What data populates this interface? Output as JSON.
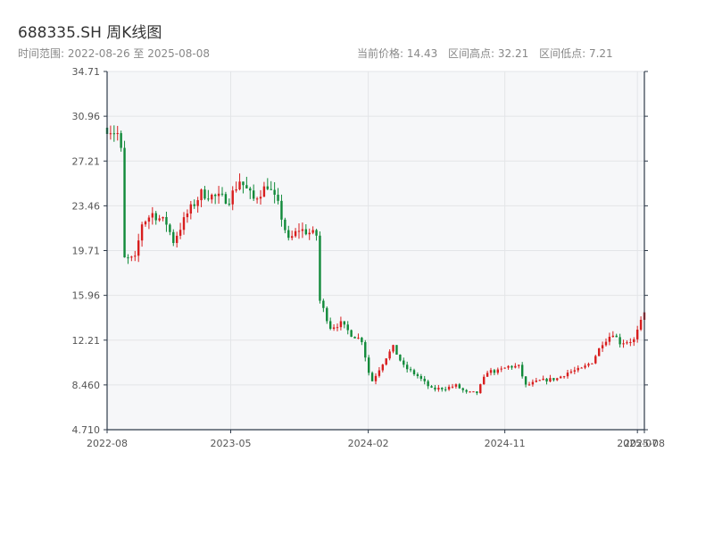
{
  "title": "688335.SH 周K线图",
  "range_text": "时间范围: 2022-08-26 至 2025-08-08",
  "current_price_text": "当前价格: 14.43",
  "high_text": "区间高点: 32.21",
  "low_text": "区间低点: 7.21",
  "colors": {
    "up": "#d81e1e",
    "down": "#118a3a",
    "plot_bg": "#f6f7f9",
    "grid": "#e3e5e8",
    "axis": "#2f3b4a"
  },
  "chart_data": {
    "type": "candlestick",
    "x_start": "2022-08-26",
    "x_end": "2025-08-08",
    "ylim": [
      4.71,
      34.71
    ],
    "y_ticks": [
      "4.710",
      "8.460",
      "12.21",
      "15.96",
      "19.71",
      "23.46",
      "27.21",
      "30.96",
      "34.71"
    ],
    "x_ticks": [
      {
        "date": "2022-08-26",
        "label": "2022-08"
      },
      {
        "date": "2023-05-01",
        "label": "2023-05"
      },
      {
        "date": "2024-02-01",
        "label": "2024-02"
      },
      {
        "date": "2024-11-01",
        "label": "2024-11"
      },
      {
        "date": "2025-07-25",
        "label": "2025-07"
      },
      {
        "date": "2025-08-08",
        "label": "2025-08"
      }
    ],
    "grid": true,
    "anchors": [
      [
        "2022-08-26",
        30.0
      ],
      [
        "2022-09-16",
        29.5
      ],
      [
        "2022-09-23",
        28.0
      ],
      [
        "2022-09-30",
        19.0
      ],
      [
        "2022-10-21",
        19.0
      ],
      [
        "2022-11-04",
        22.0
      ],
      [
        "2022-11-25",
        22.8
      ],
      [
        "2022-12-23",
        22.0
      ],
      [
        "2023-01-06",
        20.5
      ],
      [
        "2023-02-03",
        22.8
      ],
      [
        "2023-03-03",
        24.5
      ],
      [
        "2023-03-31",
        24.2
      ],
      [
        "2023-04-28",
        24.0
      ],
      [
        "2023-05-19",
        25.6
      ],
      [
        "2023-06-16",
        24.0
      ],
      [
        "2023-07-14",
        25.2
      ],
      [
        "2023-08-04",
        23.5
      ],
      [
        "2023-08-25",
        20.5
      ],
      [
        "2023-09-15",
        21.5
      ],
      [
        "2023-10-20",
        21.0
      ],
      [
        "2023-10-27",
        15.5
      ],
      [
        "2023-11-17",
        13.3
      ],
      [
        "2023-12-08",
        13.6
      ],
      [
        "2023-12-29",
        12.7
      ],
      [
        "2024-01-19",
        12.2
      ],
      [
        "2024-02-02",
        9.5
      ],
      [
        "2024-02-09",
        8.8
      ],
      [
        "2024-03-08",
        10.8
      ],
      [
        "2024-03-22",
        11.6
      ],
      [
        "2024-04-12",
        10.0
      ],
      [
        "2024-05-10",
        9.2
      ],
      [
        "2024-06-07",
        8.1
      ],
      [
        "2024-07-05",
        8.2
      ],
      [
        "2024-07-26",
        8.4
      ],
      [
        "2024-08-16",
        7.8
      ],
      [
        "2024-09-06",
        7.8
      ],
      [
        "2024-09-27",
        9.6
      ],
      [
        "2024-10-18",
        9.6
      ],
      [
        "2024-11-08",
        10.0
      ],
      [
        "2024-11-29",
        10.0
      ],
      [
        "2024-12-13",
        8.4
      ],
      [
        "2025-01-10",
        8.8
      ],
      [
        "2025-02-14",
        9.0
      ],
      [
        "2025-03-07",
        9.5
      ],
      [
        "2025-04-04",
        9.8
      ],
      [
        "2025-04-25",
        10.4
      ],
      [
        "2025-05-16",
        12.0
      ],
      [
        "2025-06-06",
        12.8
      ],
      [
        "2025-06-20",
        12.0
      ],
      [
        "2025-07-18",
        12.2
      ],
      [
        "2025-08-08",
        14.43
      ]
    ]
  }
}
